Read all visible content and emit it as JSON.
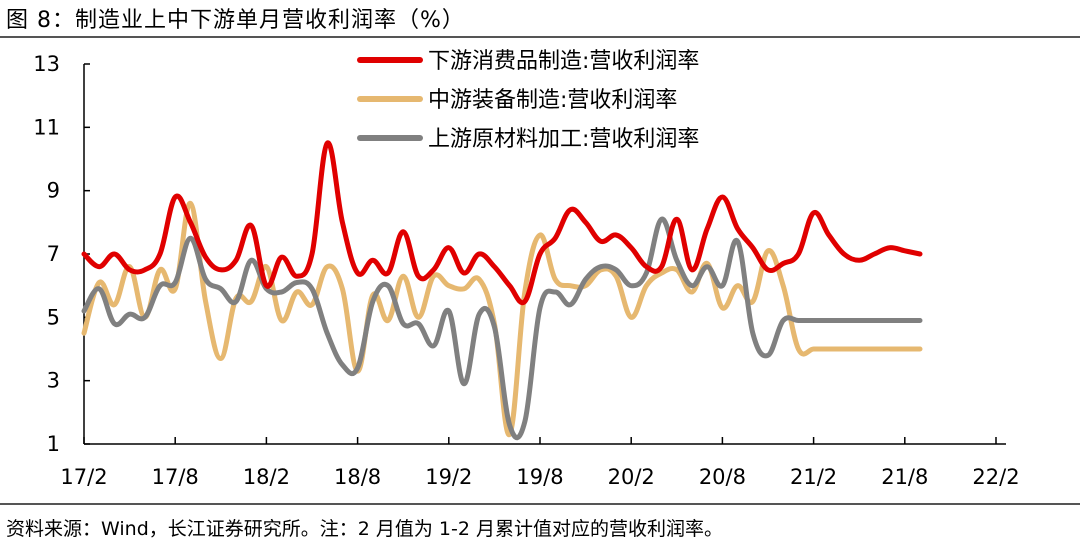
{
  "figure": {
    "title": "图 8：制造业上中下游单月营收利润率（%）",
    "source": "资料来源：Wind，长江证券研究所。注：2 月值为 1-2 月累计值对应的营收利润率。"
  },
  "chart_data": {
    "type": "line",
    "title": "制造业上中下游单月营收利润率（%）",
    "xlabel": "",
    "ylabel": "",
    "ylim": [
      1,
      13
    ],
    "yticks": [
      1,
      3,
      5,
      7,
      9,
      11,
      13
    ],
    "xticks": [
      "17/2",
      "17/8",
      "18/2",
      "18/8",
      "19/2",
      "19/8",
      "20/2",
      "20/8",
      "21/2",
      "21/8",
      "22/2"
    ],
    "x_months": [
      "17/2",
      "17/3",
      "17/4",
      "17/5",
      "17/6",
      "17/7",
      "17/8",
      "17/9",
      "17/10",
      "17/11",
      "17/12",
      "18/2",
      "18/3",
      "18/4",
      "18/5",
      "18/6",
      "18/7",
      "18/8",
      "18/9",
      "18/10",
      "18/11",
      "18/12",
      "19/2",
      "19/3",
      "19/4",
      "19/5",
      "19/6",
      "19/7",
      "19/8",
      "19/9",
      "19/10",
      "19/11",
      "19/12",
      "20/2",
      "20/3",
      "20/4",
      "20/5",
      "20/6",
      "20/7",
      "20/8",
      "20/9",
      "20/10",
      "20/11",
      "20/12",
      "21/2",
      "21/3",
      "21/4",
      "21/5",
      "21/6",
      "21/7",
      "21/8",
      "21/9",
      "21/10",
      "21/11",
      "21/12",
      "22/2"
    ],
    "legend_position": "top-center",
    "series": [
      {
        "name": "下游消费品制造:营收利润率",
        "color": "#e00000",
        "values": [
          7.0,
          6.6,
          7.0,
          6.5,
          6.5,
          7.0,
          8.8,
          8.0,
          6.9,
          6.5,
          6.8,
          7.9,
          6.0,
          6.9,
          6.3,
          7.0,
          10.5,
          8.0,
          6.4,
          6.8,
          6.4,
          7.7,
          6.3,
          6.5,
          7.2,
          6.4,
          7.0,
          6.6,
          6.0,
          5.5,
          7.0,
          7.5,
          8.4,
          8.0,
          7.4,
          7.6,
          7.2,
          6.6,
          6.6,
          8.1,
          6.5,
          7.8,
          8.8,
          7.8,
          7.2,
          6.5,
          6.7,
          7.0,
          8.3,
          7.6,
          7.0,
          6.8,
          7.0,
          7.2,
          7.1,
          7.0
        ]
      },
      {
        "name": "中游装备制造:营收利润率",
        "color": "#e6b870",
        "values": [
          4.5,
          6.1,
          5.4,
          6.6,
          5.0,
          6.5,
          5.9,
          8.6,
          5.5,
          3.7,
          5.6,
          5.5,
          6.6,
          4.9,
          5.8,
          5.4,
          6.6,
          5.9,
          3.3,
          5.7,
          4.9,
          6.3,
          5.0,
          6.3,
          6.0,
          5.9,
          6.2,
          4.8,
          1.3,
          5.8,
          7.6,
          6.2,
          6.0,
          6.0,
          6.5,
          6.3,
          5.0,
          6.0,
          6.4,
          6.5,
          5.8,
          6.7,
          5.3,
          6.0,
          5.5,
          7.1,
          6.0,
          4.0,
          4.0,
          4.0,
          4.0,
          4.0,
          4.0,
          4.0,
          4.0,
          4.0
        ]
      },
      {
        "name": "上游原材料加工:营收利润率",
        "color": "#808080",
        "values": [
          5.2,
          5.9,
          4.8,
          5.1,
          5.0,
          6.0,
          6.1,
          7.5,
          6.2,
          5.9,
          5.5,
          6.8,
          5.9,
          5.8,
          6.1,
          5.9,
          4.5,
          3.5,
          3.4,
          5.5,
          6.0,
          4.8,
          4.8,
          4.1,
          5.2,
          2.9,
          5.1,
          4.7,
          1.6,
          1.7,
          5.3,
          5.8,
          5.4,
          6.2,
          6.6,
          6.5,
          6.0,
          6.4,
          8.1,
          6.8,
          6.0,
          6.6,
          6.0,
          7.4,
          4.5,
          3.8,
          4.9,
          4.9,
          4.9,
          4.9,
          4.9,
          4.9,
          4.9,
          4.9,
          4.9,
          4.9
        ]
      }
    ]
  }
}
